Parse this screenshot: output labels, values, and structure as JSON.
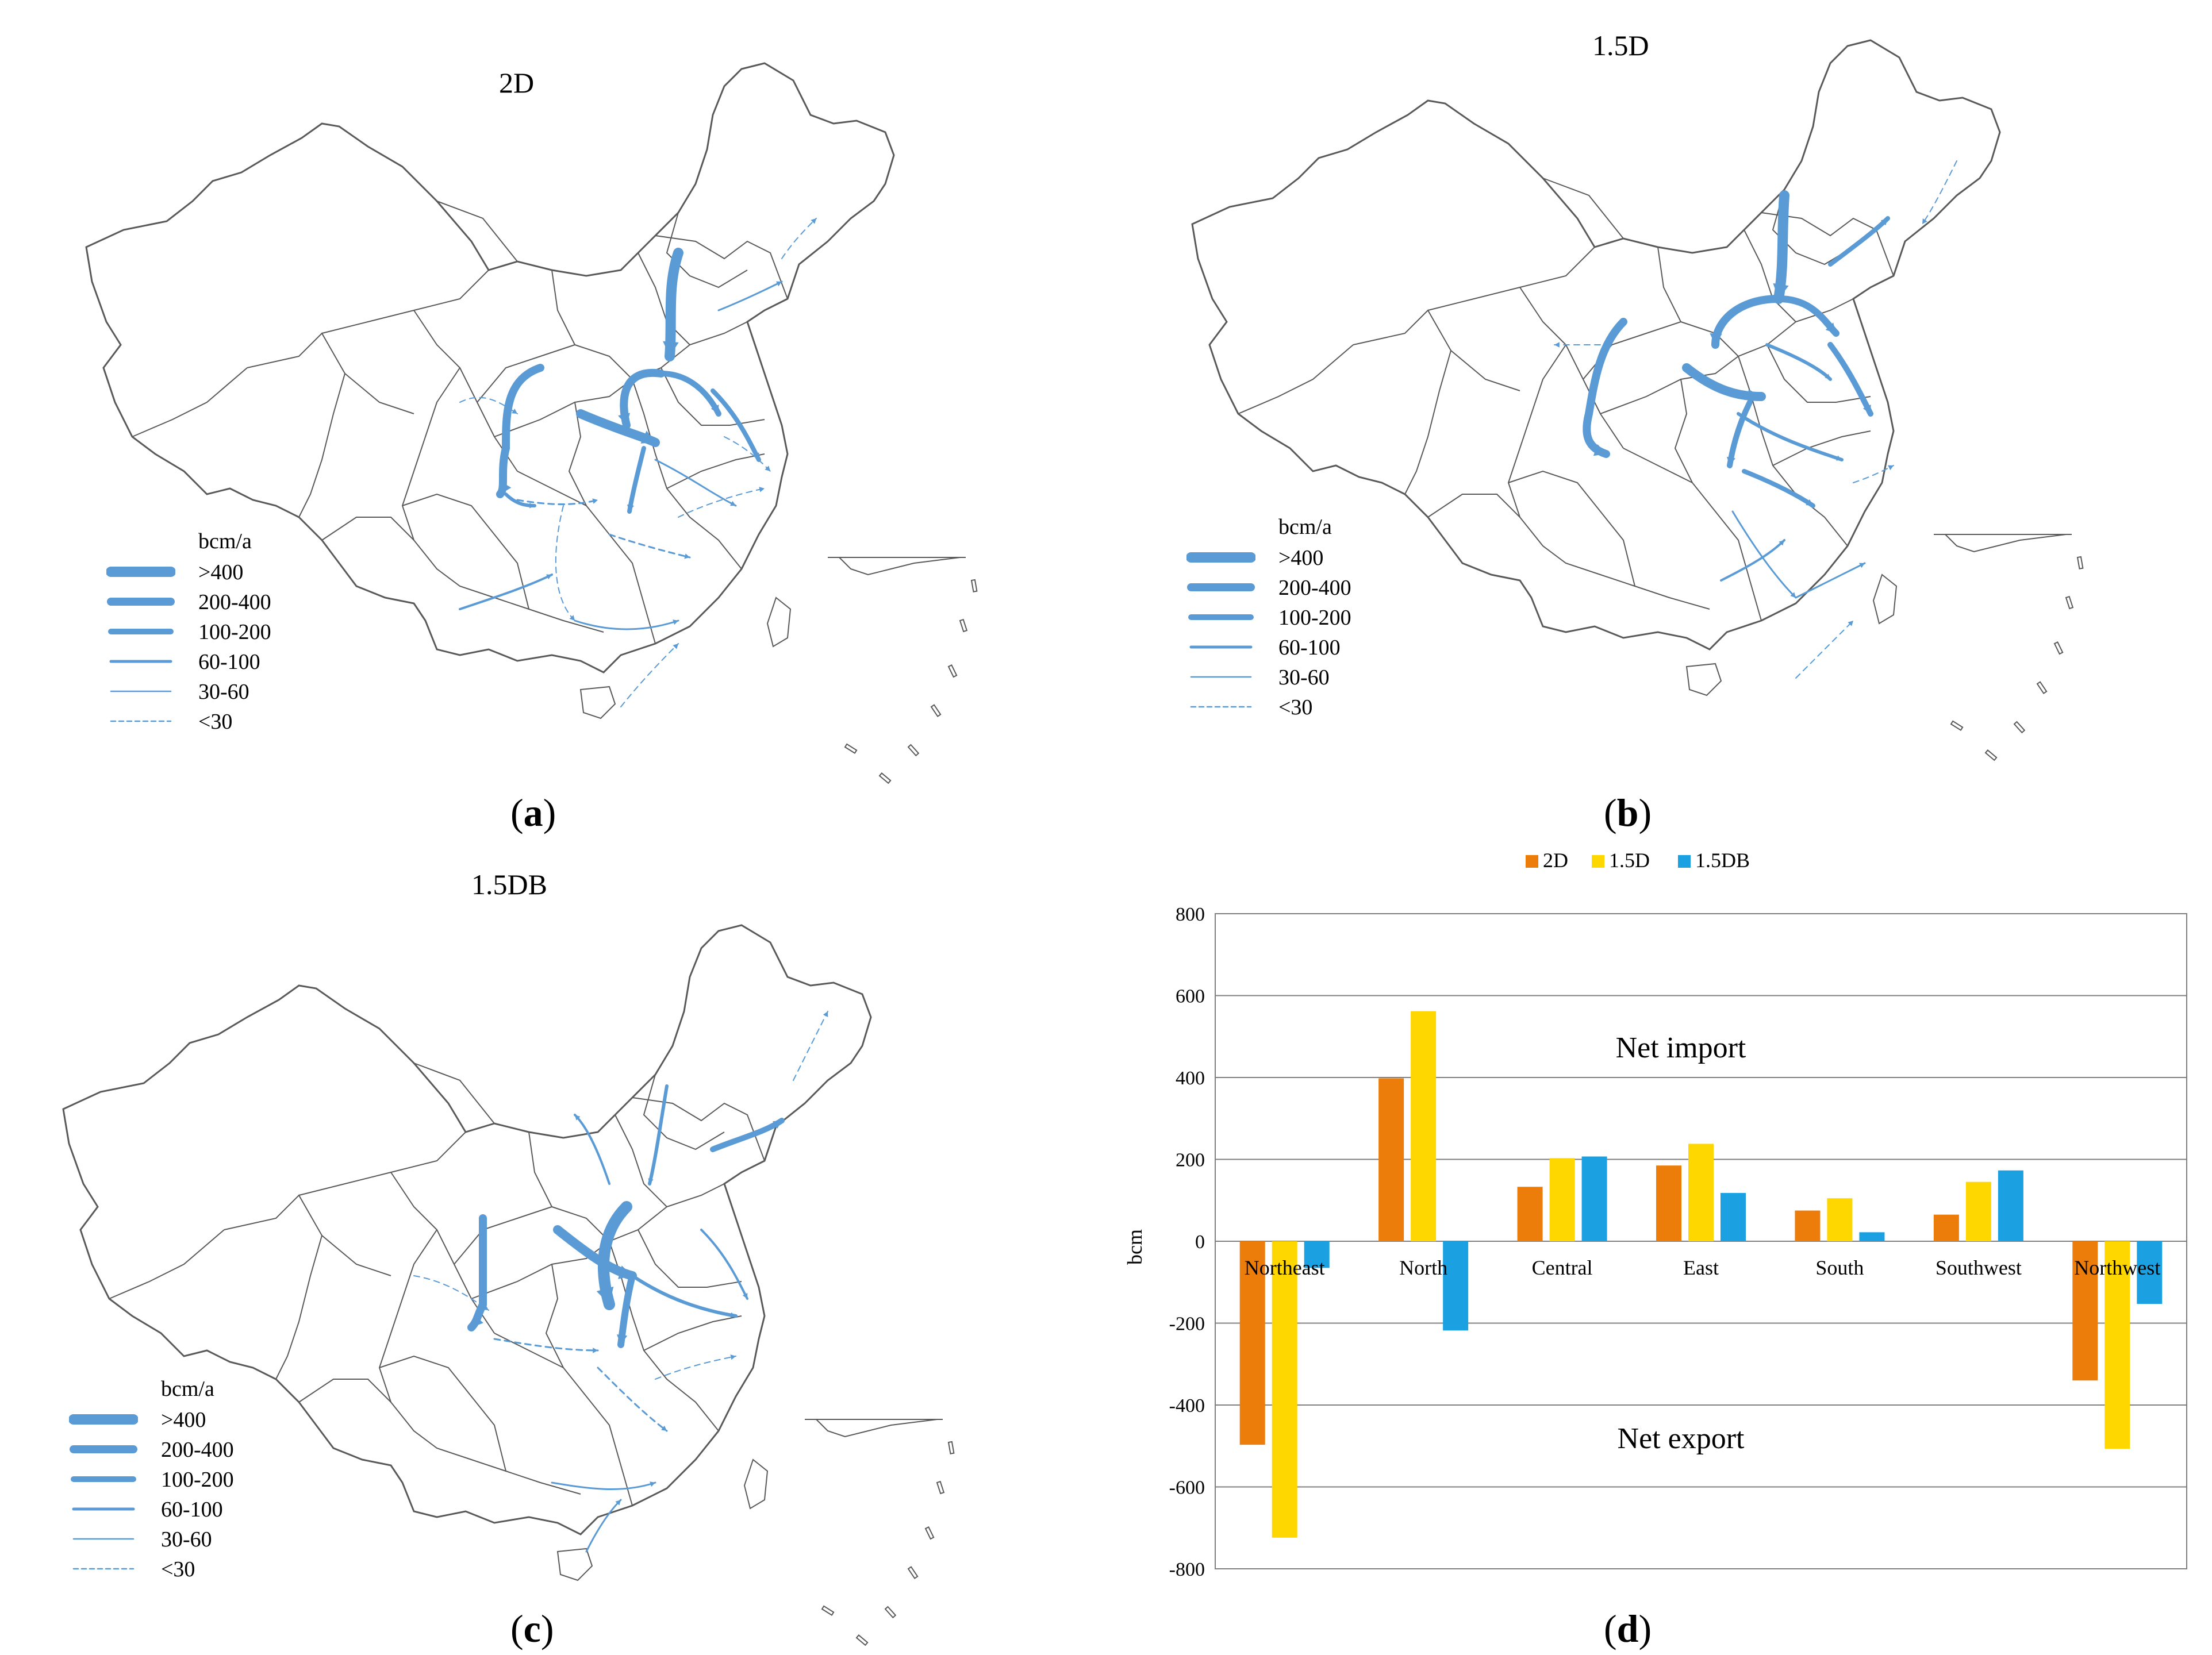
{
  "colors": {
    "flow": "#5b9bd5",
    "border": "#595959",
    "series": [
      "#ed7d0b",
      "#ffd700",
      "#1ba1e2"
    ]
  },
  "legend": {
    "unit": "bcm/a",
    "classes": [
      ">400",
      "200-400",
      "100-200",
      "60-100",
      "30-60",
      "<30"
    ]
  },
  "panels": {
    "a": {
      "title": "2D",
      "caption_letter": "a"
    },
    "b": {
      "title": "1.5D",
      "caption_letter": "b"
    },
    "c": {
      "title": "1.5DB",
      "caption_letter": "c"
    },
    "d": {
      "caption_letter": "d"
    }
  },
  "chart_data": {
    "type": "bar",
    "categories": [
      "Northeast",
      "North",
      "Central",
      "East",
      "South",
      "Southwest",
      "Northwest"
    ],
    "series": [
      {
        "name": "2D",
        "values": [
          -497,
          398,
          133,
          185,
          75,
          65,
          -340
        ]
      },
      {
        "name": "1.5D",
        "values": [
          -724,
          562,
          203,
          238,
          105,
          145,
          -507
        ]
      },
      {
        "name": "1.5DB",
        "values": [
          -65,
          -218,
          207,
          118,
          22,
          173,
          -153
        ]
      }
    ],
    "ylabel": "bcm",
    "ylim": [
      -800,
      800
    ],
    "yticks": [
      -800,
      -600,
      -400,
      -200,
      0,
      200,
      400,
      600,
      800
    ],
    "grid": true,
    "legend_position": "top",
    "annotations": [
      "Net import",
      "Net export"
    ]
  }
}
